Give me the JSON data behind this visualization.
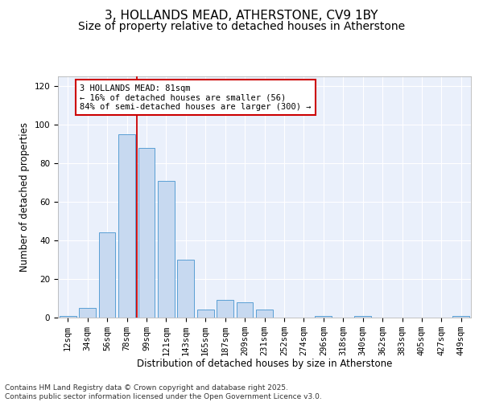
{
  "title": "3, HOLLANDS MEAD, ATHERSTONE, CV9 1BY",
  "subtitle": "Size of property relative to detached houses in Atherstone",
  "xlabel": "Distribution of detached houses by size in Atherstone",
  "ylabel": "Number of detached properties",
  "categories": [
    "12sqm",
    "34sqm",
    "56sqm",
    "78sqm",
    "99sqm",
    "121sqm",
    "143sqm",
    "165sqm",
    "187sqm",
    "209sqm",
    "231sqm",
    "252sqm",
    "274sqm",
    "296sqm",
    "318sqm",
    "340sqm",
    "362sqm",
    "383sqm",
    "405sqm",
    "427sqm",
    "449sqm"
  ],
  "values": [
    1,
    5,
    44,
    95,
    88,
    71,
    30,
    4,
    9,
    8,
    4,
    0,
    0,
    1,
    0,
    1,
    0,
    0,
    0,
    0,
    1
  ],
  "bar_color": "#c7d9f0",
  "bar_edge_color": "#5a9fd4",
  "vline_x": 3.5,
  "vline_color": "#cc0000",
  "annotation_text": "3 HOLLANDS MEAD: 81sqm\n← 16% of detached houses are smaller (56)\n84% of semi-detached houses are larger (300) →",
  "annotation_box_color": "#ffffff",
  "annotation_box_edge_color": "#cc0000",
  "ylim": [
    0,
    125
  ],
  "yticks": [
    0,
    20,
    40,
    60,
    80,
    100,
    120
  ],
  "background_color": "#eaf0fb",
  "footer_text": "Contains HM Land Registry data © Crown copyright and database right 2025.\nContains public sector information licensed under the Open Government Licence v3.0.",
  "title_fontsize": 11,
  "subtitle_fontsize": 10,
  "axis_label_fontsize": 8.5,
  "tick_fontsize": 7.5,
  "annotation_fontsize": 7.5,
  "footer_fontsize": 6.5
}
